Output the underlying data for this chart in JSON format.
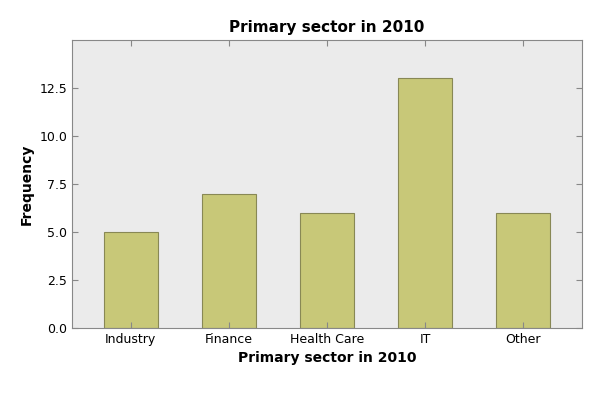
{
  "categories": [
    "Industry",
    "Finance",
    "Health Care",
    "IT",
    "Other"
  ],
  "values": [
    5,
    7,
    6,
    13,
    6
  ],
  "bar_color": "#C8C878",
  "bar_edgecolor": "#888855",
  "title": "Primary sector in 2010",
  "xlabel": "Primary sector in 2010",
  "ylabel": "Frequency",
  "ylim": [
    0,
    15
  ],
  "yticks": [
    0.0,
    2.5,
    5.0,
    7.5,
    10.0,
    12.5
  ],
  "figure_bg": "#FFFFFF",
  "axes_bg": "#EBEBEB",
  "spine_color": "#888888",
  "title_fontsize": 11,
  "label_fontsize": 10,
  "tick_fontsize": 9,
  "bar_width": 0.55
}
